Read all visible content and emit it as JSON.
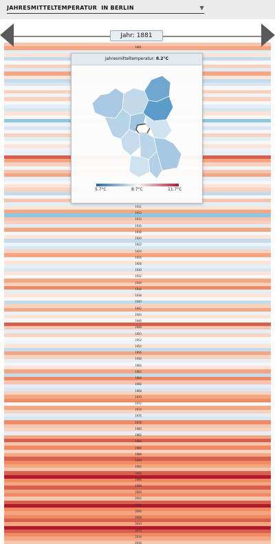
{
  "selector": {
    "label": "JAHRESMITTELTEMPERATUR",
    "value": "IN BERLIN",
    "chevron_icon": "chevron-down-icon"
  },
  "timeline": {
    "current_year": "Jahr: 1881",
    "prev_icon": "triangle-left-icon",
    "next_icon": "triangle-right-icon"
  },
  "popup": {
    "title_prefix": "Jahresmitteltemperatur:",
    "title_value": "8.2°C",
    "scale_min": "5.7°C",
    "scale_mid": "8.7°C",
    "scale_max": "11.7°C",
    "scale_colors": [
      "#2166ac",
      "#f7f7f7",
      "#b2182b"
    ]
  },
  "stripes": {
    "visible_year_labels": [
      "1881",
      "1911",
      "1912",
      "1914",
      "1916",
      "1918",
      "1920",
      "1922",
      "1924",
      "1926",
      "1928",
      "1930",
      "1932",
      "1934",
      "1936",
      "1938",
      "1940",
      "1942",
      "1944",
      "1946",
      "1948",
      "1950",
      "1952",
      "1954",
      "1956",
      "1958",
      "1960",
      "1962",
      "1964",
      "1966",
      "1968",
      "1970",
      "1972",
      "1974",
      "1976",
      "1978",
      "1980",
      "1982",
      "1984",
      "1986",
      "1988",
      "1990",
      "1992",
      "1994",
      "1996",
      "1998",
      "2000",
      "2002",
      "2004",
      "2006",
      "2008",
      "2010",
      "2012",
      "2014",
      "2016"
    ],
    "color_low": "#2166ac",
    "color_mid": "#f7f7f7",
    "color_high": "#b2182b",
    "colors": [
      "#f7c4ad",
      "#f4a582",
      "#e6eef5",
      "#fbe3d6",
      "#c4dbeb",
      "#f7f7f7",
      "#f9d2bf",
      "#dfeaf3",
      "#f4a582",
      "#fbe3d6",
      "#c4dbeb",
      "#d9e8f2",
      "#f7f7f7",
      "#f9d2bf",
      "#eef3f7",
      "#f9d2bf",
      "#f7f7f7",
      "#e6eef5",
      "#d6e7f1",
      "#fbe3d6",
      "#f7f7f7",
      "#92c5de",
      "#eef3f7",
      "#d6e7f1",
      "#f7f7f7",
      "#f9d2bf",
      "#e6eef5",
      "#f7f7f7",
      "#fbe3d6",
      "#eef3f7",
      "#e8f0f6",
      "#d6604d",
      "#f4a582",
      "#f9d2bf",
      "#eef3f7",
      "#f7c4ad",
      "#f4a582",
      "#e6eef5",
      "#f7f7f7",
      "#fbe3d6",
      "#f9d2bf",
      "#c4dbeb",
      "#f7f7f7",
      "#f7c4ad",
      "#e6eef5",
      "#fbe3d6",
      "#f4a582",
      "#92c5de",
      "#f7c4ad",
      "#f9d2bf",
      "#e6eef5",
      "#f4a582",
      "#f7f7f7",
      "#fbe3d6",
      "#c4dbeb",
      "#eef3f7",
      "#d6e7f1",
      "#f9d2bf",
      "#f4a582",
      "#f7f7f7",
      "#fbe3d6",
      "#e6eef5",
      "#d6e7f1",
      "#fbe3d6",
      "#f7f7f7",
      "#f4a582",
      "#f9d2bf",
      "#ef8a62",
      "#e6eef5",
      "#fbe3d6",
      "#f7f7f7",
      "#c4dbeb",
      "#f9d2bf",
      "#f4a582",
      "#eef3f7",
      "#fbe3d6",
      "#f7f7f7",
      "#d6604d",
      "#f7c4ad",
      "#e6eef5",
      "#f9d2bf",
      "#f7f7f7",
      "#eef3f7",
      "#fbe3d6",
      "#c4dbeb",
      "#f4a582",
      "#f9d2bf",
      "#e6eef5",
      "#f7f7f7",
      "#fbe3d6",
      "#f4a582",
      "#c4dbeb",
      "#ef8a62",
      "#f7c4ad",
      "#e6eef5",
      "#d6e7f1",
      "#f9d2bf",
      "#f4a582",
      "#ef8a62",
      "#f7f7f7",
      "#f4a582",
      "#f9d2bf",
      "#e6eef5",
      "#d6e7f1",
      "#ef8a62",
      "#f7c4ad",
      "#f9d2bf",
      "#e6eef5",
      "#f4a582",
      "#d6604d",
      "#f7c4ad",
      "#ef8a62",
      "#f9d2bf",
      "#f4a582",
      "#d6604d",
      "#ef8a62",
      "#f4a582",
      "#f7c4ad",
      "#d6604d",
      "#b2182b",
      "#ef8a62",
      "#f4a582",
      "#d6604d",
      "#f4a582",
      "#ef8a62",
      "#f7c4ad",
      "#d6604d",
      "#b2182b",
      "#ef8a62",
      "#f4a582",
      "#ef8a62",
      "#d6604d",
      "#f4a582",
      "#b2182b",
      "#d6604d",
      "#ef8a62",
      "#f4a582",
      "#f7c4ad"
    ]
  }
}
